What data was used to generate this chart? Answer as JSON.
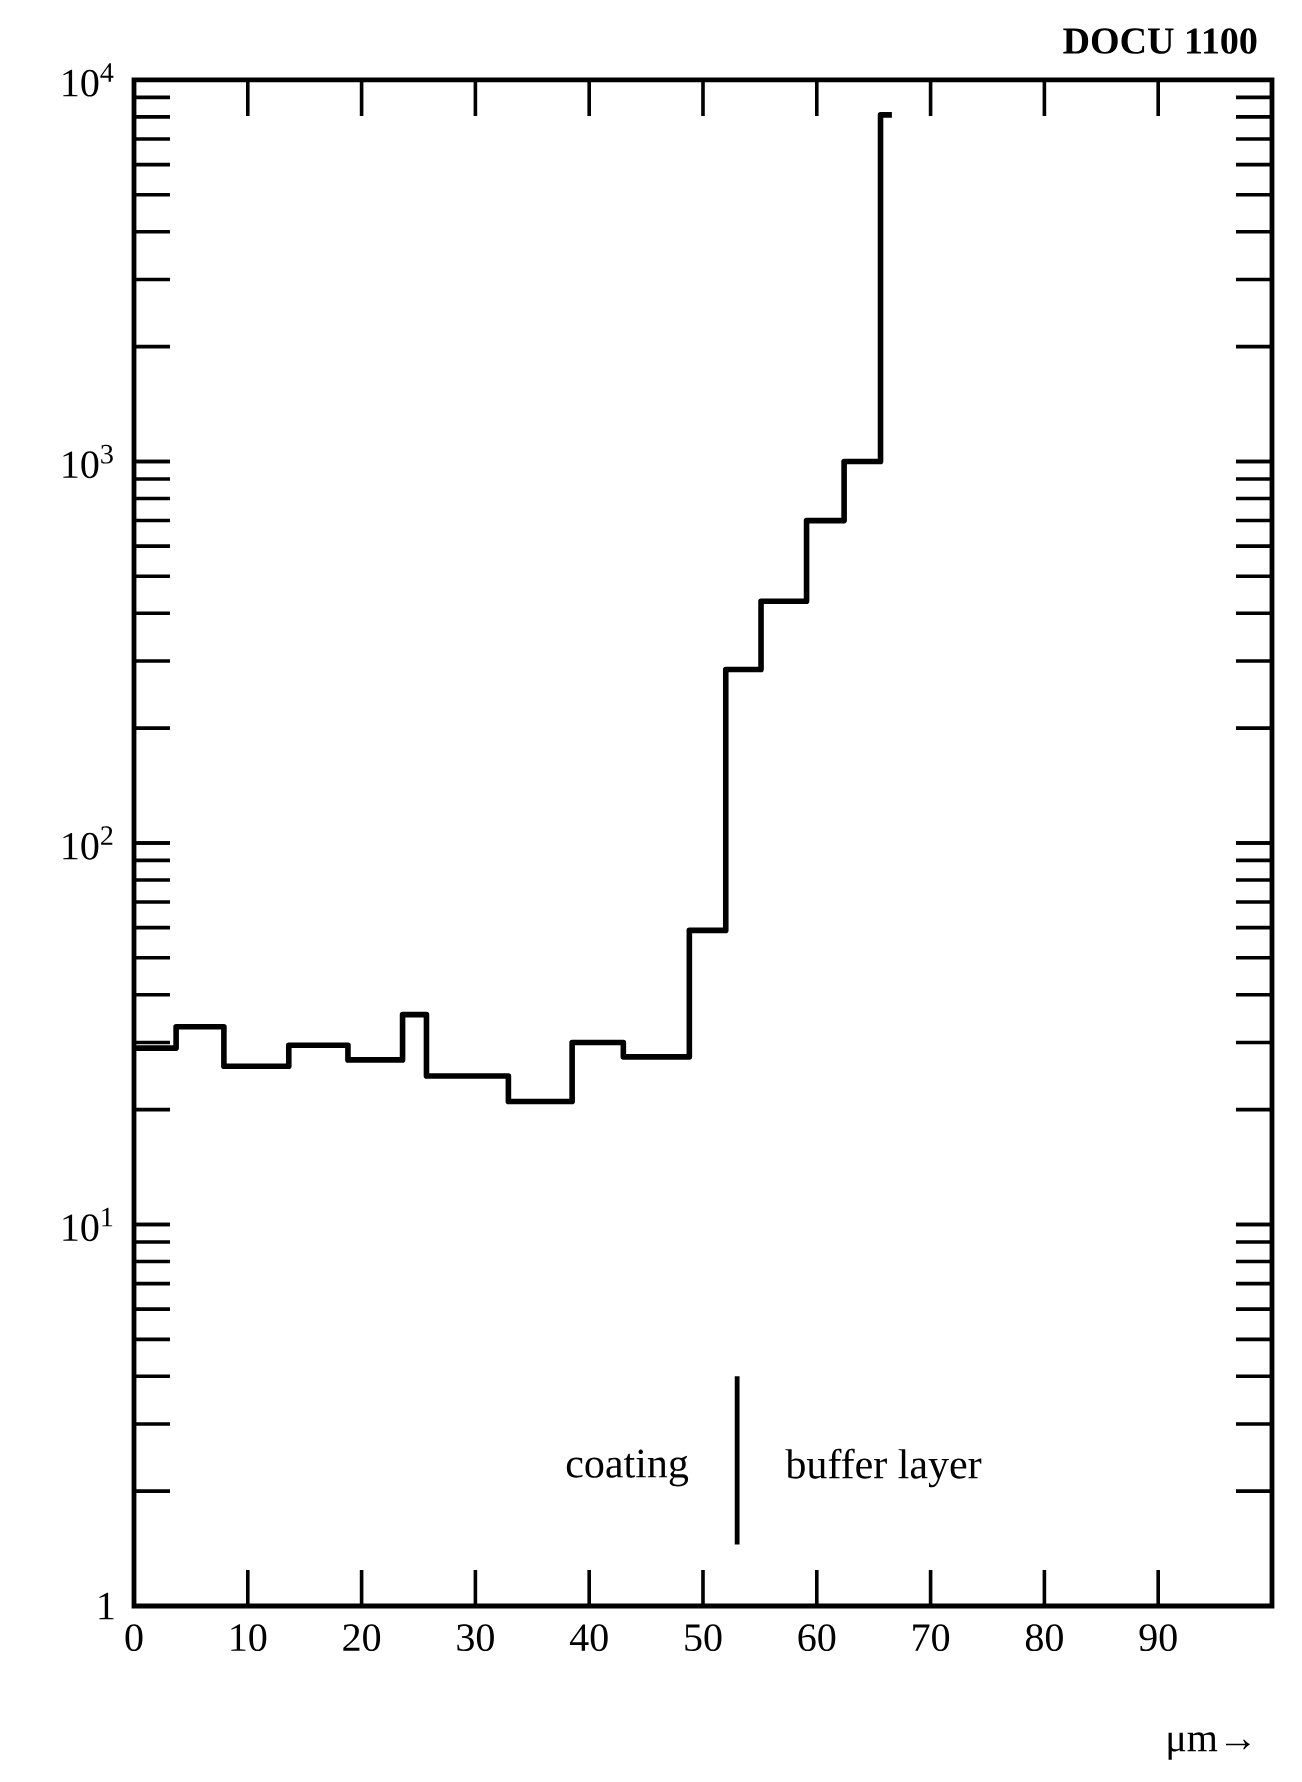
{
  "chart_data": {
    "type": "histogram",
    "title": "DOCU 1100",
    "xlabel": "μm→",
    "bins": [
      0,
      3.7,
      7.9,
      13.6,
      18.8,
      23.6,
      25.7,
      32.9,
      38.5,
      43.0,
      48.8,
      52.0,
      55.1,
      59.1,
      62.4,
      65.6,
      66.6
    ],
    "values": [
      29,
      33,
      26,
      29.5,
      27,
      35.5,
      24.5,
      21,
      30,
      27.5,
      59,
      285,
      430,
      700,
      1000,
      8100
    ],
    "color": "#000000",
    "log": "y",
    "xlim": [
      0,
      100
    ],
    "xticks": [
      0,
      10,
      20,
      30,
      40,
      50,
      60,
      70,
      80,
      90
    ],
    "ylim": [
      1,
      10000
    ],
    "yticks": [
      1,
      {
        "value": 10,
        "label": "10$^{1}$"
      },
      {
        "value": 100,
        "label": "10$^{2}$"
      },
      {
        "value": 1000,
        "label": "10$^{3}$"
      },
      {
        "value": 10000,
        "label": "10$^{4}$"
      }
    ],
    "ref_lines": [
      {
        "axis": "x",
        "value": 53,
        "label": null,
        "color": "#000000"
      }
    ],
    "annotations": [
      "coating",
      "buffer layer"
    ]
  }
}
